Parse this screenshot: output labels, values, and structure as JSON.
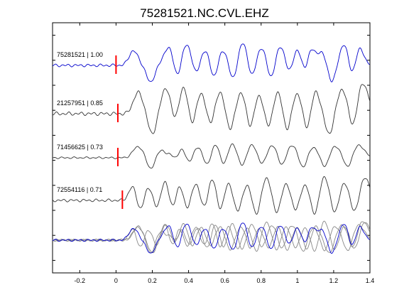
{
  "chart_data": {
    "type": "line",
    "title": "75281521.NC.CVL.EHZ",
    "xlim": [
      -0.35,
      1.4
    ],
    "x_ticks": [
      "-0.2",
      "0",
      "0.2",
      "0.4",
      "0.6",
      "0.8",
      "1",
      "1.2",
      "1.4"
    ],
    "x_tick_values": [
      -0.2,
      0,
      0.2,
      0.4,
      0.6,
      0.8,
      1.0,
      1.2,
      1.4
    ],
    "y_ticks_count": 10,
    "grid": false,
    "colors": {
      "primary": "#0000cc",
      "secondary": "#333333",
      "stack": "#888888",
      "pick": "#ff0000"
    },
    "series": [
      {
        "name": "75281521 | 1.00",
        "event": "75281521",
        "correlation": "1.00",
        "color": "#0000cc",
        "pick_time": 0.0
      },
      {
        "name": "21257951 | 0.85",
        "event": "21257951",
        "correlation": "0.85",
        "color": "#333333",
        "pick_time": 0.01
      },
      {
        "name": "71456625 | 0.73",
        "event": "71456625",
        "correlation": "0.73",
        "color": "#333333",
        "pick_time": 0.01
      },
      {
        "name": "72554116 | 0.71",
        "event": "72554116",
        "correlation": "0.71",
        "color": "#333333",
        "pick_time": 0.035
      }
    ],
    "waveform_peaks_s": [
      [
        0.09,
        0.29,
        0.39,
        0.49,
        0.59,
        0.7,
        0.8,
        0.91,
        1.0,
        1.08,
        1.12,
        1.26,
        1.34
      ],
      [
        0.12,
        0.28,
        0.37,
        0.47,
        0.57,
        0.69,
        0.79,
        0.89,
        1.0,
        1.1,
        1.25,
        1.36
      ],
      [
        0.12,
        0.26,
        0.3,
        0.36,
        0.45,
        0.55,
        0.64,
        0.75,
        0.86,
        0.97,
        1.09,
        1.21,
        1.34
      ],
      [
        0.09,
        0.18,
        0.27,
        0.35,
        0.44,
        0.53,
        0.62,
        0.72,
        0.83,
        0.94,
        1.04,
        1.15,
        1.26,
        1.37
      ]
    ]
  }
}
